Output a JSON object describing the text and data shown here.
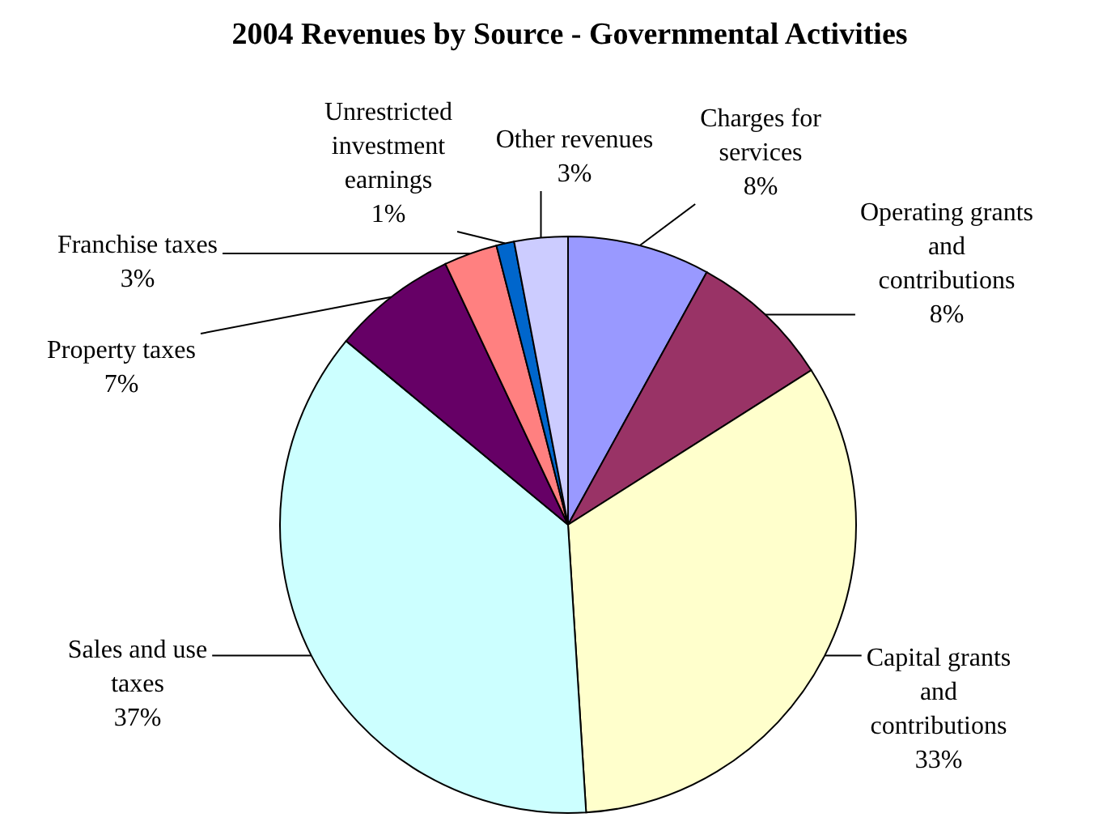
{
  "chart_data": {
    "type": "pie",
    "title": "2004 Revenues by Source - Governmental Activities",
    "categories": [
      "Charges for services",
      "Operating grants and contributions",
      "Capital grants and contributions",
      "Sales and use taxes",
      "Property taxes",
      "Franchise taxes",
      "Unrestricted investment earnings",
      "Other revenues"
    ],
    "values": [
      8,
      8,
      33,
      37,
      7,
      3,
      1,
      3
    ],
    "value_labels": [
      "8%",
      "8%",
      "33%",
      "37%",
      "7%",
      "3%",
      "1%",
      "3%"
    ],
    "colors": [
      "#9999ff",
      "#993366",
      "#ffffcc",
      "#ccffff",
      "#660066",
      "#ff8080",
      "#0066cc",
      "#ccccff"
    ]
  }
}
